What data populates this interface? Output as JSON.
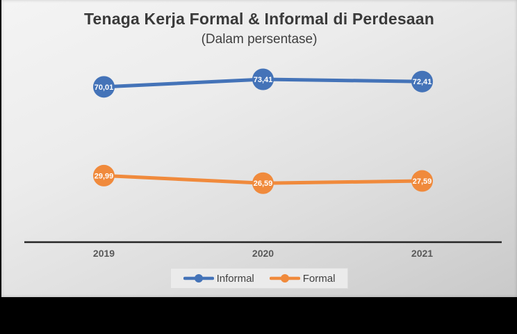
{
  "page": {
    "background_color": "#000000"
  },
  "slide": {
    "background_top_color": "#f4f4f4",
    "background_bottom_color": "#c9c9c9"
  },
  "chart_data": {
    "type": "line",
    "title": "Tenaga Kerja Formal & Informal di Perdesaan",
    "subtitle": "(Dalam persentase)",
    "categories": [
      "2019",
      "2020",
      "2021"
    ],
    "series": [
      {
        "name": "Informal",
        "color": "#4473B8",
        "values": [
          70.01,
          73.41,
          72.41
        ],
        "point_labels": [
          "70,01",
          "73,41",
          "72,41"
        ]
      },
      {
        "name": "Formal",
        "color": "#F08A3C",
        "values": [
          29.99,
          26.59,
          27.59
        ],
        "point_labels": [
          "29,99",
          "26,59",
          "27,59"
        ]
      }
    ],
    "ylim": [
      0,
      80
    ],
    "grid": false,
    "legend_position": "bottom",
    "axis_color": "#262626",
    "category_label_color": "#595959",
    "point_label_color": "#ffffff",
    "legend_text_color": "#404040",
    "legend_background": "#ebebeb"
  }
}
